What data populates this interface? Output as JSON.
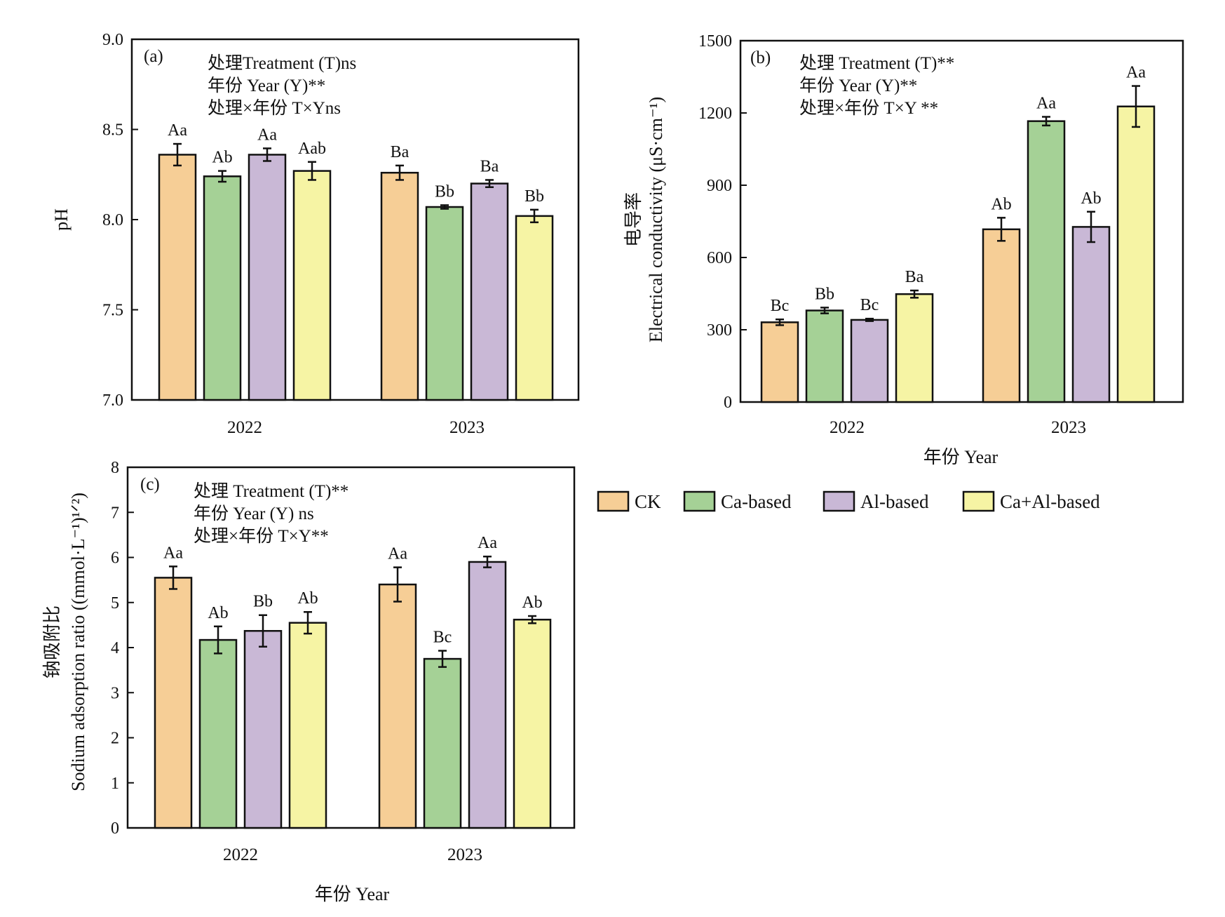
{
  "legend": [
    {
      "name": "CK",
      "color": "#F6CE96"
    },
    {
      "name": "Ca-based",
      "color": "#A5D196"
    },
    {
      "name": "Al-based",
      "color": "#C9B8D6"
    },
    {
      "name": "Ca+Al-based",
      "color": "#F6F4A4"
    }
  ],
  "chart_data": [
    {
      "id": "a",
      "type": "bar",
      "panel_label": "(a)",
      "title": "",
      "xlabel": "",
      "ylabel": "pH",
      "ylabel_cn": "",
      "ylim": [
        7.0,
        9.0
      ],
      "yticks": [
        "7.0",
        "7.5",
        "8.0",
        "8.5",
        "9.0"
      ],
      "ytick_values": [
        7.0,
        7.5,
        8.0,
        8.5,
        9.0
      ],
      "categories": [
        "2022",
        "2023"
      ],
      "annotations": [
        "处理Treatment (T)ns",
        "年份 Year (Y)**",
        "处理×年份 T×Yns"
      ],
      "series": [
        {
          "name": "CK",
          "values": [
            8.36,
            8.26
          ],
          "errors": [
            0.06,
            0.04
          ],
          "letters": [
            "Aa",
            "Ba"
          ]
        },
        {
          "name": "Ca-based",
          "values": [
            8.24,
            8.07
          ],
          "errors": [
            0.03,
            0.01
          ],
          "letters": [
            "Ab",
            "Bb"
          ]
        },
        {
          "name": "Al-based",
          "values": [
            8.36,
            8.2
          ],
          "errors": [
            0.035,
            0.02
          ],
          "letters": [
            "Aa",
            "Ba"
          ]
        },
        {
          "name": "Ca+Al-based",
          "values": [
            8.27,
            8.02
          ],
          "errors": [
            0.05,
            0.035
          ],
          "letters": [
            "Aab",
            "Bb"
          ]
        }
      ]
    },
    {
      "id": "b",
      "type": "bar",
      "panel_label": "(b)",
      "title": "",
      "xlabel": "年份 Year",
      "ylabel": "Electrical conductivity (μS·cm⁻¹)",
      "ylabel_cn": "电导率",
      "ylim": [
        0,
        1500
      ],
      "yticks": [
        "0",
        "300",
        "600",
        "900",
        "1200",
        "1500"
      ],
      "ytick_values": [
        0,
        300,
        600,
        900,
        1200,
        1500
      ],
      "categories": [
        "2022",
        "2023"
      ],
      "annotations": [
        "处理 Treatment (T)**",
        "年份 Year (Y)**",
        "处理×年份 T×Y **"
      ],
      "series": [
        {
          "name": "CK",
          "values": [
            331,
            717
          ],
          "errors": [
            12,
            48
          ],
          "letters": [
            "Bc",
            "Ab"
          ]
        },
        {
          "name": "Ca-based",
          "values": [
            380,
            1166
          ],
          "errors": [
            12,
            18
          ],
          "letters": [
            "Bb",
            "Aa"
          ]
        },
        {
          "name": "Al-based",
          "values": [
            341,
            727
          ],
          "errors": [
            5,
            63
          ],
          "letters": [
            "Bc",
            "Ab"
          ]
        },
        {
          "name": "Ca+Al-based",
          "values": [
            448,
            1227
          ],
          "errors": [
            15,
            85
          ],
          "letters": [
            "Ba",
            "Aa"
          ]
        }
      ]
    },
    {
      "id": "c",
      "type": "bar",
      "panel_label": "(c)",
      "title": "",
      "xlabel": "年份 Year",
      "ylabel": "Sodium adsorption ratio ((mmol·L⁻¹)¹ᐟ²)",
      "ylabel_cn": "钠吸附比",
      "ylim": [
        0,
        8
      ],
      "yticks": [
        "0",
        "1",
        "2",
        "3",
        "4",
        "5",
        "6",
        "7",
        "8"
      ],
      "ytick_values": [
        0,
        1,
        2,
        3,
        4,
        5,
        6,
        7,
        8
      ],
      "categories": [
        "2022",
        "2023"
      ],
      "annotations": [
        "处理 Treatment (T)**",
        "年份 Year (Y) ns",
        "处理×年份 T×Y**"
      ],
      "series": [
        {
          "name": "CK",
          "values": [
            5.55,
            5.4
          ],
          "errors": [
            0.25,
            0.38
          ],
          "letters": [
            "Aa",
            "Aa"
          ]
        },
        {
          "name": "Ca-based",
          "values": [
            4.17,
            3.75
          ],
          "errors": [
            0.3,
            0.18
          ],
          "letters": [
            "Ab",
            "Bc"
          ]
        },
        {
          "name": "Al-based",
          "values": [
            4.37,
            5.9
          ],
          "errors": [
            0.35,
            0.12
          ],
          "letters": [
            "Bb",
            "Aa"
          ]
        },
        {
          "name": "Ca+Al-based",
          "values": [
            4.55,
            4.62
          ],
          "errors": [
            0.24,
            0.08
          ],
          "letters": [
            "Ab",
            "Ab"
          ]
        }
      ]
    }
  ]
}
